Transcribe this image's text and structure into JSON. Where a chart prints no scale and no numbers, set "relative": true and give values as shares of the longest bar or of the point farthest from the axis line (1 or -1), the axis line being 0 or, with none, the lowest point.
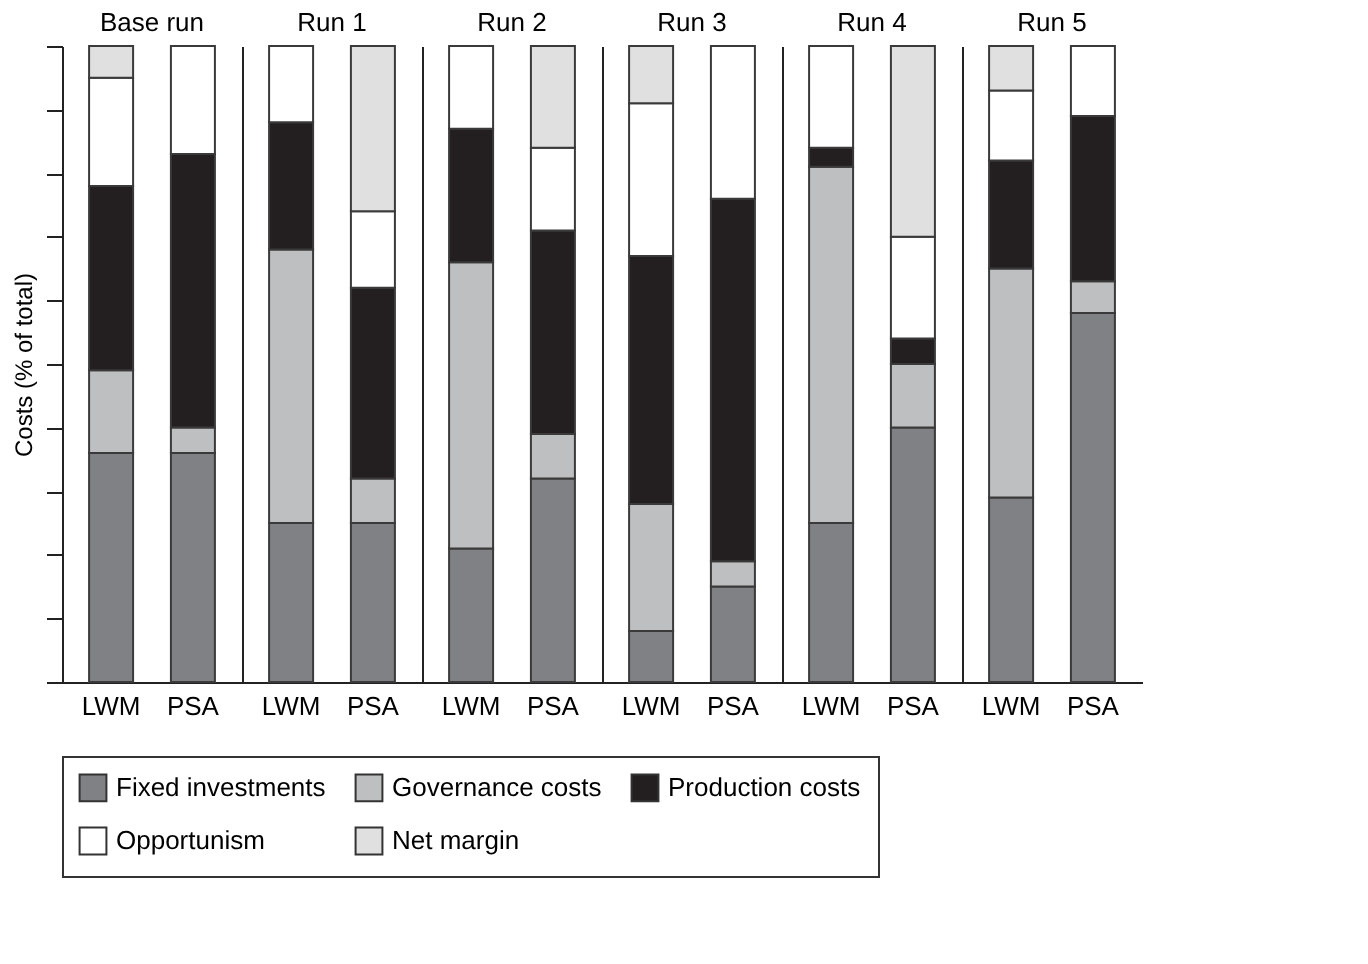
{
  "chart_data": [
    {
      "type": "bar",
      "title": "Base run",
      "ylabel": "Costs (% of total)",
      "categories": [
        "LWM",
        "PSA"
      ],
      "stacked": true,
      "relative": true,
      "grid": false,
      "legend": "bottom",
      "tick_labels": "x",
      "series": [
        {
          "name": "Fixed investments",
          "color": "#808184",
          "values": [
            0.36,
            0.36
          ]
        },
        {
          "name": "Governance costs",
          "color": "#bebfc1",
          "values": [
            0.13,
            0.04
          ]
        },
        {
          "name": "Production costs",
          "color": "#231f20",
          "values": [
            0.29,
            0.43
          ]
        },
        {
          "name": "Opportunism",
          "color": "#ffffff",
          "values": [
            0.17,
            0.17
          ]
        },
        {
          "name": "Net margin",
          "color": "#e0e0e0",
          "values": [
            0.05,
            null
          ]
        }
      ]
    },
    {
      "type": "bar",
      "title": "Run 1",
      "categories": [
        "LWM",
        "PSA"
      ],
      "stacked": true,
      "relative": true,
      "grid": false,
      "legend": "bottom",
      "tick_labels": "x",
      "series": [
        {
          "name": "Fixed investments",
          "color": "#808184",
          "values": [
            0.25,
            0.25
          ]
        },
        {
          "name": "Governance costs",
          "color": "#bebfc1",
          "values": [
            0.43,
            0.07
          ]
        },
        {
          "name": "Production costs",
          "color": "#231f20",
          "values": [
            0.2,
            0.3
          ]
        },
        {
          "name": "Opportunism",
          "color": "#ffffff",
          "values": [
            0.12,
            0.12
          ]
        },
        {
          "name": "Net margin",
          "color": "#e0e0e0",
          "values": [
            null,
            0.26
          ]
        }
      ]
    },
    {
      "type": "bar",
      "title": "Run 2",
      "categories": [
        "LWM",
        "PSA"
      ],
      "stacked": true,
      "relative": true,
      "grid": false,
      "legend": "bottom",
      "tick_labels": "x",
      "series": [
        {
          "name": "Fixed investments",
          "color": "#808184",
          "values": [
            0.21,
            0.32
          ]
        },
        {
          "name": "Governance costs",
          "color": "#bebfc1",
          "values": [
            0.45,
            0.07
          ]
        },
        {
          "name": "Production costs",
          "color": "#231f20",
          "values": [
            0.21,
            0.32
          ]
        },
        {
          "name": "Opportunism",
          "color": "#ffffff",
          "values": [
            0.13,
            0.13
          ]
        },
        {
          "name": "Net margin",
          "color": "#e0e0e0",
          "values": [
            null,
            0.16
          ]
        }
      ]
    },
    {
      "type": "bar",
      "title": "Run 3",
      "categories": [
        "LWM",
        "PSA"
      ],
      "stacked": true,
      "relative": true,
      "grid": false,
      "legend": "bottom",
      "tick_labels": "x",
      "series": [
        {
          "name": "Fixed investments",
          "color": "#808184",
          "values": [
            0.08,
            0.15
          ]
        },
        {
          "name": "Governance costs",
          "color": "#bebfc1",
          "values": [
            0.2,
            0.04
          ]
        },
        {
          "name": "Production costs",
          "color": "#231f20",
          "values": [
            0.39,
            0.57
          ]
        },
        {
          "name": "Opportunism",
          "color": "#ffffff",
          "values": [
            0.24,
            0.24
          ]
        },
        {
          "name": "Net margin",
          "color": "#e0e0e0",
          "values": [
            0.09,
            null
          ]
        }
      ]
    },
    {
      "type": "bar",
      "title": "Run 4",
      "categories": [
        "LWM",
        "PSA"
      ],
      "stacked": true,
      "relative": true,
      "grid": false,
      "legend": "bottom",
      "tick_labels": "x",
      "series": [
        {
          "name": "Fixed investments",
          "color": "#808184",
          "values": [
            0.25,
            0.4
          ]
        },
        {
          "name": "Governance costs",
          "color": "#bebfc1",
          "values": [
            0.56,
            0.1
          ]
        },
        {
          "name": "Production costs",
          "color": "#231f20",
          "values": [
            0.03,
            0.04
          ]
        },
        {
          "name": "Opportunism",
          "color": "#ffffff",
          "values": [
            0.16,
            0.16
          ]
        },
        {
          "name": "Net margin",
          "color": "#e0e0e0",
          "values": [
            null,
            0.3
          ]
        }
      ]
    },
    {
      "type": "bar",
      "title": "Run 5",
      "categories": [
        "LWM",
        "PSA"
      ],
      "stacked": true,
      "relative": true,
      "grid": false,
      "legend": "bottom",
      "tick_labels": "x",
      "series": [
        {
          "name": "Fixed investments",
          "color": "#808184",
          "values": [
            0.29,
            0.58
          ]
        },
        {
          "name": "Governance costs",
          "color": "#bebfc1",
          "values": [
            0.36,
            0.05
          ]
        },
        {
          "name": "Production costs",
          "color": "#231f20",
          "values": [
            0.17,
            0.26
          ]
        },
        {
          "name": "Opportunism",
          "color": "#ffffff",
          "values": [
            0.11,
            0.11
          ]
        },
        {
          "name": "Net margin",
          "color": "#e0e0e0",
          "values": [
            0.07,
            null
          ]
        }
      ]
    }
  ]
}
